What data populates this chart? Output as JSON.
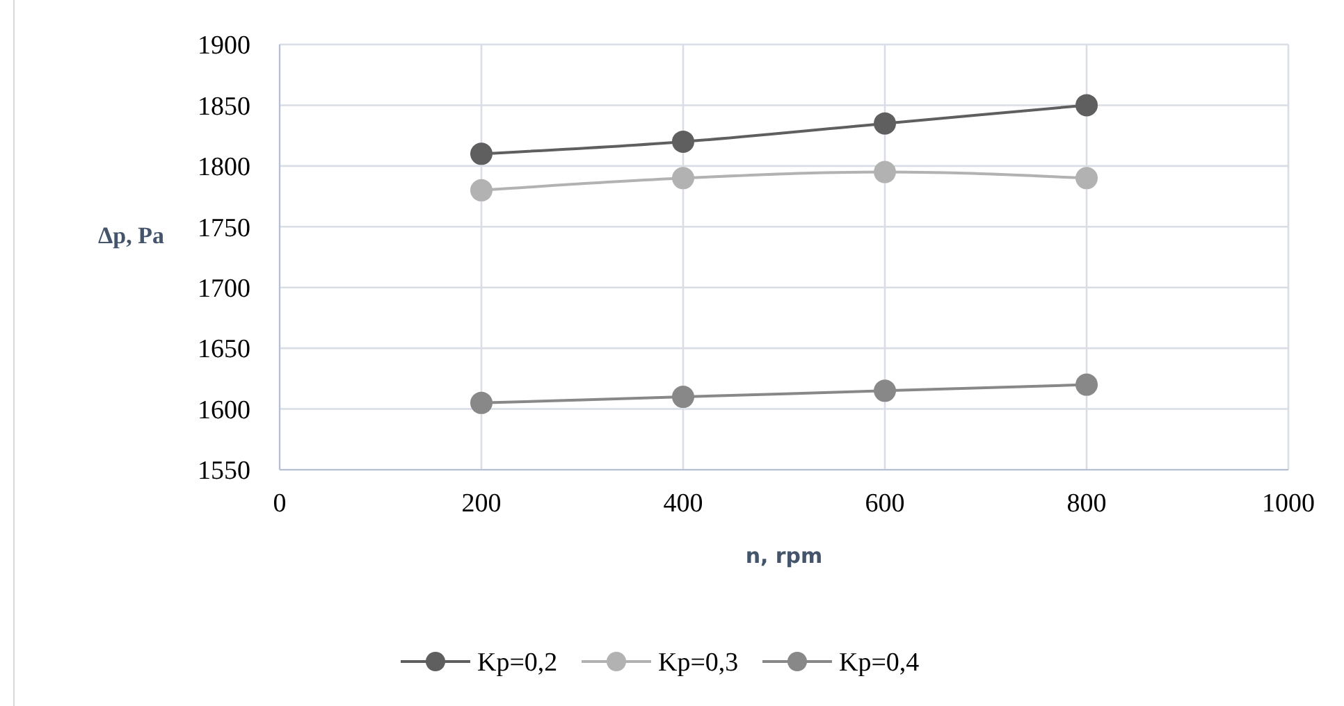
{
  "chart_data": {
    "type": "line",
    "xlabel": "n, rpm",
    "ylabel": "Δp, Pa",
    "x": [
      200,
      400,
      600,
      800
    ],
    "series": [
      {
        "name": "Kp=0,2",
        "color": "#5f5f5f",
        "values": [
          1810,
          1820,
          1835,
          1850
        ]
      },
      {
        "name": "Kp=0,3",
        "color": "#b2b2b2",
        "values": [
          1780,
          1790,
          1795,
          1790
        ]
      },
      {
        "name": "Kp=0,4",
        "color": "#888888",
        "values": [
          1605,
          1610,
          1615,
          1620
        ]
      }
    ],
    "xlim": [
      0,
      1000
    ],
    "xticks": [
      0,
      200,
      400,
      600,
      800,
      1000
    ],
    "ylim": [
      1550,
      1900
    ],
    "yticks": [
      1550,
      1600,
      1650,
      1700,
      1750,
      1800,
      1850,
      1900
    ],
    "grid": true,
    "legend": "bottom",
    "marker": "circle",
    "line_style": "solid"
  }
}
